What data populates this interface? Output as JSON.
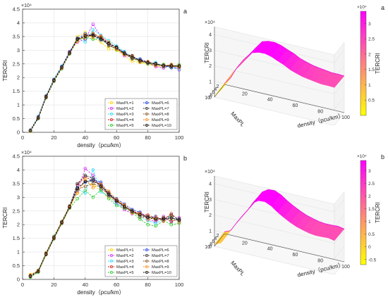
{
  "chart_data": [
    {
      "type": "line",
      "panel_letter": "a",
      "exponent_label": "×10⁴",
      "xlabel": "density（pcu/km）",
      "ylabel": "TERCRI",
      "xlim": [
        0,
        100
      ],
      "ylim": [
        0,
        45000
      ],
      "x_ticks": [
        "0",
        "20",
        "40",
        "60",
        "80",
        "100"
      ],
      "y_ticks": [
        "0",
        "0.5",
        "1",
        "1.5",
        "2",
        "2.5",
        "3",
        "3.5",
        "4",
        "4.5"
      ],
      "grid": true,
      "legend_position": "bottom-right",
      "x": [
        5,
        10,
        15,
        20,
        25,
        30,
        35,
        40,
        45,
        50,
        55,
        60,
        65,
        70,
        75,
        80,
        85,
        90,
        95,
        100
      ],
      "series": [
        {
          "name": "MaxPL=1",
          "color": "#ffd400",
          "values": [
            400,
            5200,
            12800,
            18800,
            23500,
            28800,
            35000,
            36500,
            34500,
            33000,
            30500,
            30000,
            28000,
            26000,
            25500,
            24800,
            24300,
            23800,
            24200,
            23900
          ]
        },
        {
          "name": "MaxPL=2",
          "color": "#d42cff",
          "values": [
            600,
            5500,
            13000,
            19000,
            24000,
            29500,
            33000,
            34000,
            39500,
            35000,
            32500,
            31000,
            28000,
            27500,
            26500,
            25500,
            24000,
            23500,
            24500,
            22800
          ]
        },
        {
          "name": "MaxPL=3",
          "color": "#2ad9ff",
          "values": [
            900,
            5800,
            13400,
            19500,
            24200,
            29000,
            34500,
            33000,
            37500,
            35500,
            33500,
            31500,
            29500,
            27500,
            26500,
            25000,
            25500,
            24000,
            23800,
            23000
          ]
        },
        {
          "name": "MaxPL=4",
          "color": "#d81e1e",
          "values": [
            700,
            5400,
            13200,
            19200,
            23800,
            29200,
            34000,
            35000,
            35800,
            34800,
            32000,
            30500,
            28500,
            27800,
            26200,
            25800,
            24800,
            24500,
            24200,
            24400
          ]
        },
        {
          "name": "MaxPL=5",
          "color": "#33cc33",
          "values": [
            500,
            5000,
            12600,
            18600,
            23200,
            28600,
            33600,
            34800,
            34000,
            34200,
            31800,
            30200,
            28800,
            27000,
            25800,
            25200,
            24600,
            24800,
            24000,
            24700
          ]
        },
        {
          "name": "MaxPL=6",
          "color": "#1f3fdb",
          "values": [
            800,
            5600,
            13100,
            19100,
            23900,
            29400,
            34200,
            36000,
            35200,
            33800,
            32200,
            30800,
            29200,
            27200,
            26800,
            25600,
            25000,
            24400,
            23600,
            23600
          ]
        },
        {
          "name": "MaxPL=7",
          "color": "#333333",
          "values": [
            600,
            5300,
            12900,
            18900,
            23700,
            29000,
            33800,
            35400,
            35600,
            34000,
            32400,
            31200,
            28600,
            28000,
            26000,
            25400,
            25200,
            24100,
            24600,
            24000
          ]
        },
        {
          "name": "MaxPL=8",
          "color": "#8a5a2b",
          "values": [
            500,
            5100,
            12700,
            18700,
            23400,
            28800,
            34400,
            34200,
            36200,
            34600,
            31600,
            30600,
            29000,
            26800,
            26400,
            25200,
            24500,
            24600,
            23900,
            24300
          ]
        },
        {
          "name": "MaxPL=9",
          "color": "#ff8c1a",
          "values": [
            700,
            5400,
            13000,
            19000,
            23600,
            29100,
            33200,
            35600,
            34800,
            35200,
            33000,
            30400,
            28400,
            27600,
            25600,
            25900,
            24700,
            24200,
            24800,
            23500
          ]
        },
        {
          "name": "MaxPL=10",
          "color": "#111111",
          "values": [
            600,
            5300,
            13000,
            19000,
            23800,
            29000,
            34000,
            35200,
            35400,
            34400,
            32600,
            31000,
            28800,
            27400,
            26200,
            25500,
            24900,
            24300,
            24300,
            24100
          ]
        }
      ]
    },
    {
      "type": "line",
      "panel_letter": "b",
      "exponent_label": "×10⁴",
      "xlabel": "density（pcu/km）",
      "ylabel": "TERCRI",
      "xlim": [
        0,
        100
      ],
      "ylim": [
        0,
        45000
      ],
      "x_ticks": [
        "0",
        "20",
        "40",
        "60",
        "80",
        "100"
      ],
      "y_ticks": [
        "0",
        "0.5",
        "1",
        "1.5",
        "2",
        "2.5",
        "3",
        "3.5",
        "4",
        "4.5"
      ],
      "grid": true,
      "legend_position": "bottom-right",
      "x": [
        5,
        10,
        15,
        20,
        25,
        30,
        35,
        40,
        45,
        50,
        55,
        60,
        65,
        70,
        75,
        80,
        85,
        90,
        95,
        100
      ],
      "series": [
        {
          "name": "MaxPL=1",
          "color": "#ffd400",
          "values": [
            1800,
            3200,
            9600,
            15500,
            21000,
            26200,
            31800,
            36000,
            34500,
            32500,
            30000,
            28500,
            27000,
            24500,
            23500,
            23000,
            22000,
            22500,
            21500,
            21800
          ]
        },
        {
          "name": "MaxPL=2",
          "color": "#d42cff",
          "values": [
            1200,
            3000,
            9400,
            15200,
            20800,
            26800,
            32500,
            40500,
            38000,
            33000,
            31500,
            28000,
            25500,
            24000,
            24500,
            22000,
            21000,
            23000,
            21000,
            22500
          ]
        },
        {
          "name": "MaxPL=3",
          "color": "#2ad9ff",
          "values": [
            1500,
            3400,
            9800,
            15800,
            21200,
            27000,
            33000,
            31500,
            40000,
            32000,
            30500,
            27500,
            26500,
            25000,
            23000,
            21500,
            20500,
            22000,
            23000,
            21000
          ]
        },
        {
          "name": "MaxPL=4",
          "color": "#d81e1e",
          "values": [
            1000,
            2800,
            9200,
            15000,
            20600,
            26500,
            34500,
            37500,
            36000,
            34800,
            30500,
            29000,
            27000,
            25000,
            24000,
            23500,
            22500,
            22000,
            24000,
            21500
          ]
        },
        {
          "name": "MaxPL=5",
          "color": "#33cc33",
          "values": [
            800,
            2600,
            9000,
            14800,
            20400,
            26000,
            29500,
            32500,
            30000,
            32800,
            29500,
            27000,
            26000,
            24500,
            22000,
            20000,
            19500,
            21500,
            20000,
            20500
          ]
        },
        {
          "name": "MaxPL=6",
          "color": "#1f3fdb",
          "values": [
            1400,
            3100,
            9500,
            15400,
            21000,
            26400,
            33500,
            35500,
            36500,
            35500,
            31000,
            29500,
            27500,
            25500,
            24500,
            22500,
            23000,
            21500,
            22500,
            22000
          ]
        },
        {
          "name": "MaxPL=7",
          "color": "#333333",
          "values": [
            1300,
            3000,
            9300,
            15100,
            20700,
            26600,
            35000,
            38000,
            37000,
            34000,
            31800,
            28500,
            26800,
            24800,
            23800,
            23000,
            22200,
            21800,
            23500,
            21800
          ]
        },
        {
          "name": "MaxPL=8",
          "color": "#8a5a2b",
          "values": [
            1100,
            2900,
            9100,
            14900,
            20500,
            26200,
            32800,
            34000,
            35000,
            33600,
            30800,
            28800,
            26200,
            25200,
            22800,
            22800,
            21600,
            22600,
            21200,
            22200
          ]
        },
        {
          "name": "MaxPL=9",
          "color": "#ff8c1a",
          "values": [
            1600,
            3300,
            9700,
            15600,
            21100,
            26900,
            31500,
            36500,
            33500,
            34600,
            32200,
            29200,
            27200,
            24200,
            24200,
            21800,
            22800,
            21200,
            22800,
            20800
          ]
        },
        {
          "name": "MaxPL=10",
          "color": "#111111",
          "values": [
            1200,
            3000,
            9400,
            15300,
            20900,
            26500,
            33200,
            35800,
            36000,
            34200,
            31200,
            28800,
            26600,
            24800,
            23600,
            22600,
            22100,
            22200,
            22400,
            21600
          ]
        }
      ]
    },
    {
      "type": "surface",
      "panel_letter": "a",
      "exponent_label": "×10⁴",
      "zlabel": "TERCRI",
      "xlabel": "density（pcu/km）",
      "ylabel": "MaxPL",
      "density_ticks": [
        "20",
        "40",
        "60",
        "80",
        "100"
      ],
      "maxpl_ticks": [
        "2",
        "4",
        "6",
        "8",
        "10"
      ],
      "colorbar": {
        "label": "TERCRI",
        "exponent_label": "×10⁴",
        "ticks": [
          "0.5",
          "1",
          "1.5",
          "2",
          "2.5",
          "3"
        ],
        "range": [
          0,
          34000
        ],
        "color_low": "#ffff00",
        "color_high": "#ff00ff"
      },
      "density": [
        5,
        10,
        15,
        20,
        25,
        30,
        35,
        40,
        45,
        50,
        55,
        60,
        65,
        70,
        75,
        80,
        85,
        90,
        95,
        100
      ],
      "profile": [
        600,
        5300,
        13000,
        19000,
        23800,
        29000,
        34000,
        35200,
        35400,
        34400,
        32600,
        31000,
        28800,
        27400,
        26200,
        25500,
        24900,
        24300,
        24300,
        24100
      ]
    },
    {
      "type": "surface",
      "panel_letter": "b",
      "exponent_label": "×10⁴",
      "zlabel": "TERCRI",
      "xlabel": "density（pcu/km）",
      "ylabel": "MaxPL",
      "density_ticks": [
        "20",
        "40",
        "60",
        "80",
        "100"
      ],
      "maxpl_ticks": [
        "2",
        "4",
        "6",
        "8",
        "10"
      ],
      "colorbar": {
        "label": "TERCRI",
        "exponent_label": "×10⁴",
        "ticks": [
          "-0.5",
          "0",
          "0.5",
          "1",
          "1.5",
          "2",
          "2.5",
          "3"
        ],
        "range": [
          -7000,
          34000
        ],
        "color_low": "#ffff00",
        "color_high": "#ff00ff"
      },
      "density": [
        5,
        10,
        15,
        20,
        25,
        30,
        35,
        40,
        45,
        50,
        55,
        60,
        65,
        70,
        75,
        80,
        85,
        90,
        95,
        100
      ],
      "profile": [
        1200,
        3000,
        9400,
        15300,
        20900,
        26500,
        33200,
        35800,
        36000,
        34200,
        31200,
        28800,
        26600,
        24800,
        23600,
        22600,
        22100,
        22200,
        22400,
        21600
      ]
    }
  ]
}
